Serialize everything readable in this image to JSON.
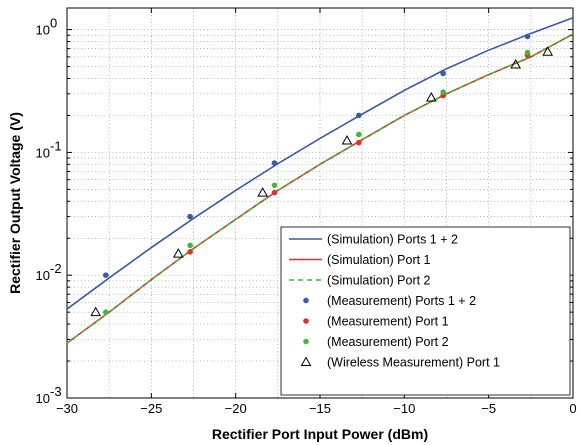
{
  "chart_data": {
    "type": "line",
    "xlabel": "Rectifier Port Input Power (dBm)",
    "ylabel": "Rectifier Output Voltage (V)",
    "xlim": [
      -30,
      0
    ],
    "ylim": [
      0.001,
      1.5
    ],
    "yscale": "log",
    "grid": "dotted, major and minor",
    "legend_position": "bottom-right",
    "x_ticks": [
      -30,
      -25,
      -20,
      -15,
      -10,
      -5,
      0
    ],
    "x_tick_labels": [
      "−30",
      "−25",
      "−20",
      "−15",
      "−10",
      "−5",
      "0"
    ],
    "y_ticks": [
      0.001,
      0.01,
      0.1,
      1
    ],
    "y_tick_labels": [
      {
        "base": "10",
        "exp": "-3"
      },
      {
        "base": "10",
        "exp": "-2"
      },
      {
        "base": "10",
        "exp": "-1"
      },
      {
        "base": "10",
        "exp": "0"
      }
    ],
    "series": [
      {
        "name": "(Simulation) Ports 1 + 2",
        "kind": "line",
        "color": "#3a5ba8",
        "dash": "solid",
        "x": [
          -30,
          -27.5,
          -25,
          -22.5,
          -20,
          -17.5,
          -15,
          -12.5,
          -10,
          -7.5,
          -5,
          -2.5,
          0
        ],
        "y": [
          0.0053,
          0.0095,
          0.0168,
          0.029,
          0.049,
          0.081,
          0.13,
          0.205,
          0.32,
          0.48,
          0.68,
          0.93,
          1.25
        ]
      },
      {
        "name": "(Simulation) Port 1",
        "kind": "line",
        "color": "#e0312b",
        "dash": "solid",
        "x": [
          -30,
          -27.5,
          -25,
          -22.5,
          -20,
          -17.5,
          -15,
          -12.5,
          -10,
          -7.5,
          -5,
          -2.5,
          0
        ],
        "y": [
          0.0028,
          0.005,
          0.0092,
          0.0165,
          0.0285,
          0.049,
          0.08,
          0.127,
          0.2,
          0.3,
          0.43,
          0.6,
          0.92
        ]
      },
      {
        "name": "(Simulation) Port 2",
        "kind": "line",
        "color": "#3fb93f",
        "dash": "dashed",
        "x": [
          -30,
          -27.5,
          -25,
          -22.5,
          -20,
          -17.5,
          -15,
          -12.5,
          -10,
          -7.5,
          -5,
          -2.5,
          0
        ],
        "y": [
          0.0028,
          0.005,
          0.0092,
          0.0165,
          0.0285,
          0.049,
          0.08,
          0.127,
          0.2,
          0.3,
          0.43,
          0.6,
          0.92
        ]
      },
      {
        "name": "(Measurement) Ports 1 + 2",
        "kind": "points",
        "marker": "dot",
        "color": "#3a5ba8",
        "x": [
          -27.7,
          -22.7,
          -17.7,
          -12.7,
          -7.7,
          -2.7
        ],
        "y": [
          0.01,
          0.03,
          0.082,
          0.2,
          0.44,
          0.88
        ]
      },
      {
        "name": "(Measurement) Port 1",
        "kind": "points",
        "marker": "dot",
        "color": "#e0312b",
        "x": [
          -22.7,
          -17.7,
          -12.7,
          -7.7,
          -2.7
        ],
        "y": [
          0.0155,
          0.047,
          0.12,
          0.29,
          0.62
        ]
      },
      {
        "name": "(Measurement) Port 2",
        "kind": "points",
        "marker": "dot",
        "color": "#3fb93f",
        "x": [
          -27.7,
          -22.7,
          -17.7,
          -12.7,
          -7.7,
          -2.7
        ],
        "y": [
          0.005,
          0.0175,
          0.054,
          0.14,
          0.31,
          0.65
        ]
      },
      {
        "name": "(Wireless Measurement) Port 1",
        "kind": "points",
        "marker": "triangle",
        "color": "#000000",
        "x": [
          -28.3,
          -23.4,
          -18.4,
          -13.4,
          -8.4,
          -3.4,
          -1.5
        ],
        "y": [
          0.005,
          0.015,
          0.047,
          0.125,
          0.28,
          0.52,
          0.66
        ]
      }
    ]
  }
}
